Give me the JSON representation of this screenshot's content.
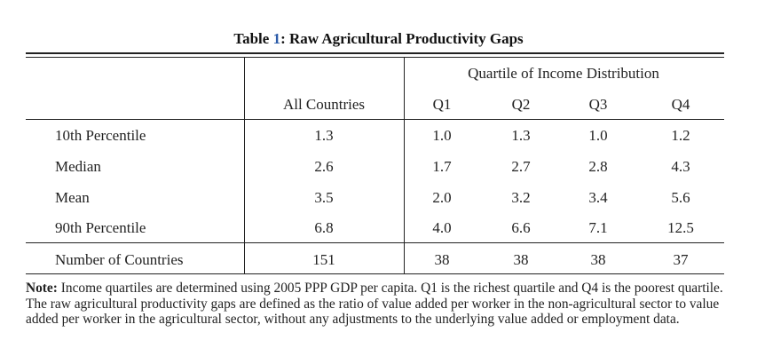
{
  "caption": {
    "prefix": "Table ",
    "number": "1",
    "title": ": Raw Agricultural Productivity Gaps"
  },
  "table": {
    "group_header": "Quartile of Income Distribution",
    "columns": [
      "All Countries",
      "Q1",
      "Q2",
      "Q3",
      "Q4"
    ],
    "rows": [
      {
        "label": "10th Percentile",
        "values": [
          "1.3",
          "1.0",
          "1.3",
          "1.0",
          "1.2"
        ]
      },
      {
        "label": "Median",
        "values": [
          "2.6",
          "1.7",
          "2.7",
          "2.8",
          "4.3"
        ]
      },
      {
        "label": "Mean",
        "values": [
          "3.5",
          "2.0",
          "3.2",
          "3.4",
          "5.6"
        ]
      },
      {
        "label": "90th Percentile",
        "values": [
          "6.8",
          "4.0",
          "6.6",
          "7.1",
          "12.5"
        ]
      }
    ],
    "footer_row": {
      "label": "Number of Countries",
      "values": [
        "151",
        "38",
        "38",
        "38",
        "37"
      ]
    }
  },
  "note": {
    "label": "Note:",
    "text": " Income quartiles are determined using 2005 PPP GDP per capita. Q1 is the richest quartile and Q4 is the poorest quartile. The raw agricultural productivity gaps are defined as the ratio of value added per worker in the non-agricultural sector to value added per worker in the agricultural sector, without any adjustments to the underlying value added or employment data."
  }
}
